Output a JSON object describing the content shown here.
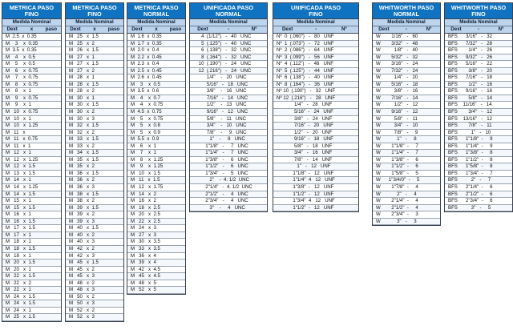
{
  "tables": [
    {
      "id": "metrica-fino-1",
      "title_line1": "METRICA PASO",
      "title_line2": "FINO",
      "subtitle": "Medida Nominal",
      "col1": "Dext",
      "col_sep": "x",
      "col2": "paso",
      "rows": [
        "M  2.5  x  0.35",
        "M    3    x  0.35",
        "M  3.5  x  0.35",
        "M    4    x  0.5",
        "M    5    x  0.5",
        "M    6    x  0.75",
        "M    7    x  0.75",
        "M    8    x  0.75",
        "M    8    x  1",
        "M    9    x  0.75",
        "M    9    x  1",
        "M   10   x  0.75",
        "M   10   x  1",
        "M   10   x  1.25",
        "M   11   x",
        "M   11   x  0.75",
        "M   11   x  1",
        "M   12   x  1",
        "M   12   x  1.25",
        "M   12   x  1.5",
        "M   13   x  1.5",
        "M   14   x  1",
        "M   14   x  1.25",
        "M   14   x  1.5",
        "M   15   x  1",
        "M   15   x  1.5",
        "M   16   x  1",
        "M   16   x  1.5",
        "M   17   x  1.5",
        "M   17   x  1",
        "M   18   x  1",
        "M   18   x  1.5",
        "M   18   x  1",
        "M   20   x  1.5",
        "M   20   x  1",
        "M   22   x  1.5",
        "M   22   x  2",
        "M   22   x  1",
        "M   24   x  1.5",
        "M   24   x  1.5",
        "M   24   x  1",
        "M   25   x  1.5"
      ]
    },
    {
      "id": "metrica-fino-2",
      "title_line1": "METRICA PASO",
      "title_line2": "FINO",
      "subtitle": "Medida Nominal",
      "col1": "Dext",
      "col_sep": "x",
      "col2": "paso",
      "rows": [
        "M   25   x  1.5",
        "M   25   x  2",
        "M   26   x  1.5",
        "M   27   x  1",
        "M   27   x  1.5",
        "M   27   x  2",
        "M   28   x  1",
        "M   28   x  1.5",
        "M   28   x  2",
        "M   30   x  1",
        "M   30   x  1.5",
        "M   30   x  2",
        "M   30   x  3",
        "M   32   x  1.5",
        "M   32   x  2",
        "M   33   x  1.5",
        "M   33   x  2",
        "M   34   x  1.5",
        "M   35   x  1.5",
        "M   35   x  2",
        "M   36   x  1.5",
        "M   36   x  2",
        "M   36   x  3",
        "M   38   x  1.5",
        "M   38   x  2",
        "M   39   x  1.5",
        "M   39   x  2",
        "M   39   x  3",
        "M   40   x  1.5",
        "M   40   x  2",
        "M   40   x  3",
        "M   42   x  2",
        "M   42   x  3",
        "M   45   x  1.5",
        "M   45   x  2",
        "M   45   x  3",
        "M   48   x  2",
        "M   48   x  3",
        "M   50   x  2",
        "M   50   x  3",
        "M   52   x  2",
        "M   52   x  3"
      ]
    },
    {
      "id": "metrica-normal",
      "title_line1": "METRICA PASO",
      "title_line2": "NORMAL",
      "subtitle": "Medida Nominal",
      "col1": "Dext",
      "col_sep": "x",
      "col2": "paso",
      "rows": [
        "M  1.6  x  0.35",
        "M  1.7  x  0.35",
        "M  2.0  x  0.4",
        "M  2.2  x  0.45",
        "M  2.3  x  0.4",
        "M  2.5  x  0.45",
        "M  2.6  x  0.45",
        "M    3    x  0.5",
        "M  3.5  x  0.6",
        "M    4    x  0.7",
        "M    4    x  0.75",
        "M  4.5  x  0.75",
        "M    5    x  0.75",
        "M    5    x  0.8",
        "M    5    x  0.9",
        "M  5.5  x  0.9",
        "M    6    x  1",
        "M    7    x  1",
        "M    8    x  1.25",
        "M    9    x  1.25",
        "M   10   x  1.5",
        "M   11   x  1.5",
        "M   12   x  1.75",
        "M   14   x  2",
        "M   16   x  2",
        "M   18   x  2.5",
        "M   20   x  2.5",
        "M   22   x  2.5",
        "M   24   x  3",
        "M   27   x  3",
        "M   30   x  3.5",
        "M   33   x  3.5",
        "M   36   x  4",
        "M   39   x  4",
        "M   42   x  4.5",
        "M   45   x  4.5",
        "M   48   x  5",
        "M   52   x  5"
      ]
    },
    {
      "id": "unificada-normal",
      "title_line1": "UNIFICADA PASO",
      "title_line2": "NORMAL",
      "subtitle": "Medida Nominal",
      "col1": "Dext",
      "col_sep": "-",
      "col2": "Nº",
      "rows": [
        "      4  (1/12\")   -   40   UNC",
        "      5  (.125\")   -   40   UNC",
        "      6  (.138\")   -   32   UNC",
        "      8  (.164\")   -   32   UNC",
        "    10  (.190\")   -   24   UNC",
        "    12  (.216\")   -   24   UNC",
        "          1/4\"    -   20   UNC",
        "          5/16\"   -   18   UNC",
        "          3/8\"    -   16   UNC",
        "          7/16\"   -   14   UNC",
        "          1/2\"    -   13   UNC",
        "          9/16\"   -   12   UNC",
        "          5/8\"    -   11   UNC",
        "          3/4\"    -   10   UNC",
        "          7/8\"    -     9   UNC",
        "            1\"    -     8   UNC",
        "         1\"1/8\"   -     7   UNC",
        "         1\"1/4\"   -     7   UNC",
        "         1\"3/8\"   -     6   UNC",
        "         1\"1/2\"   -     6   UNC",
        "         1\"3/4\"   -     5   UNC",
        "            2\"    -  4. 1/2  UNC",
        "         2\"1/4\"   -  4. 1/2  UNC",
        "         2\"1/2\"   -     4   UNC",
        "         2\"3/4\"   -     4   UNC",
        "            3\"    -     4   UNC"
      ]
    },
    {
      "id": "unificada-fino",
      "title_line1": "UNIFICADA PASO",
      "title_line2": "FINO",
      "subtitle": "Medida Nominal",
      "col1": "Dext",
      "col_sep": "-",
      "col2": "Nº",
      "rows": [
        "Nº  0  (.060\")   -   80   UNF",
        "Nº  1  (.073\")   -   72   UNF",
        "Nº  2  (.086\")   -   64   UNF",
        "Nº  3  (.099\")   -   56   UNF",
        "Nº  4  (.112\")   -   48   UNF",
        "Nº  5  (.125\")   -   44   UNF",
        "Nº  6  (.138\")   -   40   UNF",
        "Nº  8  (.164\")   -   36   UNF",
        "Nº 10  (.190\")   -   32   UNF",
        "Nº 12  (.216\")   -   28   UNF",
        "             1/4\"   -   28   UNF",
        "             5/16\"  -   24   UNF",
        "             3/8\"   -   24   UNF",
        "             7/16\"  -   20   UNF",
        "             1/2\"   -   20   UNF",
        "             9/16\"  -   18   UNF",
        "             5/8\"   -   18   UNF",
        "             3/4\"   -   16   UNF",
        "             7/8\"   -   14   UNF",
        "               1\"   -   12   UNF",
        "            1\"1/8\"  -   12   UNF",
        "            1\"1/4\"  4   12   UNF",
        "            1\"3/8\"  -   12   UNF",
        "            1\"1/2\"  -   12   UNF",
        "            1\"3/4\"  4   12   UNF",
        "            1\"1/2\"  -   12   UNF"
      ]
    },
    {
      "id": "whitworth-normal",
      "title_line1": "WHITWORTH PASO",
      "title_line2": "NORMAL",
      "subtitle": "Medida Nominal",
      "col1": "Dext",
      "col_sep": "-",
      "col2": "Nº",
      "rows": [
        "W        1/16\"   -   60",
        "W        3/32\"   -   48",
        "W          1/8\"   -   40",
        "W        5/32\"   -   32",
        "W        3/16\"   -   24",
        "W        7/32\"   -   24",
        "W          1/4\"   -   20",
        "W        5/16\"   -   18",
        "W          3/8\"   -   16",
        "W        7/16\"   -   14",
        "W          1/2\"   -   12",
        "W        9/16\"   -   12",
        "W          5/8\"   -   11",
        "W          3/4\"   -   10",
        "W          7/8\"   -     9",
        "W            1\"   -     8",
        "W        1\"1/8\"  -     7",
        "W        1\"1/4\"  -     7",
        "W        1\"3/8\"  -     6",
        "W        1\"1/2\"  -     6",
        "W        1\"5/8\"  -     5",
        "W      1\"3/4/0\"  -     5",
        "W        1\"7/8\"  -     4",
        "W            2\"   -     4",
        "W        2\"1/4\"  -     4",
        "W        2\"1/2\"  -     4",
        "W        2\"3/4\"  -     3",
        "W            3\"   -     3"
      ]
    },
    {
      "id": "whitworth-fino",
      "title_line1": "WHITWORTH PASO",
      "title_line2": "FINO",
      "subtitle": "Medida Nominal",
      "col1": "Dext",
      "col_sep": "-",
      "col2": "Nº",
      "rows": [
        "BFS      3/16\"   -   32",
        "BFS      7/32\"   -   28",
        "BFS        1/4\"   -   26",
        "BFS      9/32\"   -   26",
        "BFS      5/16\"   -   22",
        "BFS        3/8\"   -   20",
        "BFS      7/16\"   -   18",
        "BFS        1/2\"   -   16",
        "BFS      9/16\"   -   16",
        "BFS        5/8\"   -   14",
        "BFS    11/16\"   -   14",
        "BFS        3/4\"   -   12",
        "BFS    13/16\"   -   12",
        "BFS        7/8\"   -   11",
        "BFS          1\"   -   10",
        "BFS      1\"1/8\"  -     9",
        "BFS      1\"1/4\"  -     9",
        "BFS      1\"3/8\"  -     8",
        "BFS      1\"1/2\"  -     8",
        "BFS      1\"5/8\"  -     8",
        "BFS      1\"3/4\"  -     7",
        "BFS          2\"   -     7",
        "BFS      2\"1/4\"  -     6",
        "BFS      2\"1/2\"  -     6",
        "BFS      2\"3/4\"  -     6",
        "BFS          3\"   -     5"
      ]
    }
  ]
}
